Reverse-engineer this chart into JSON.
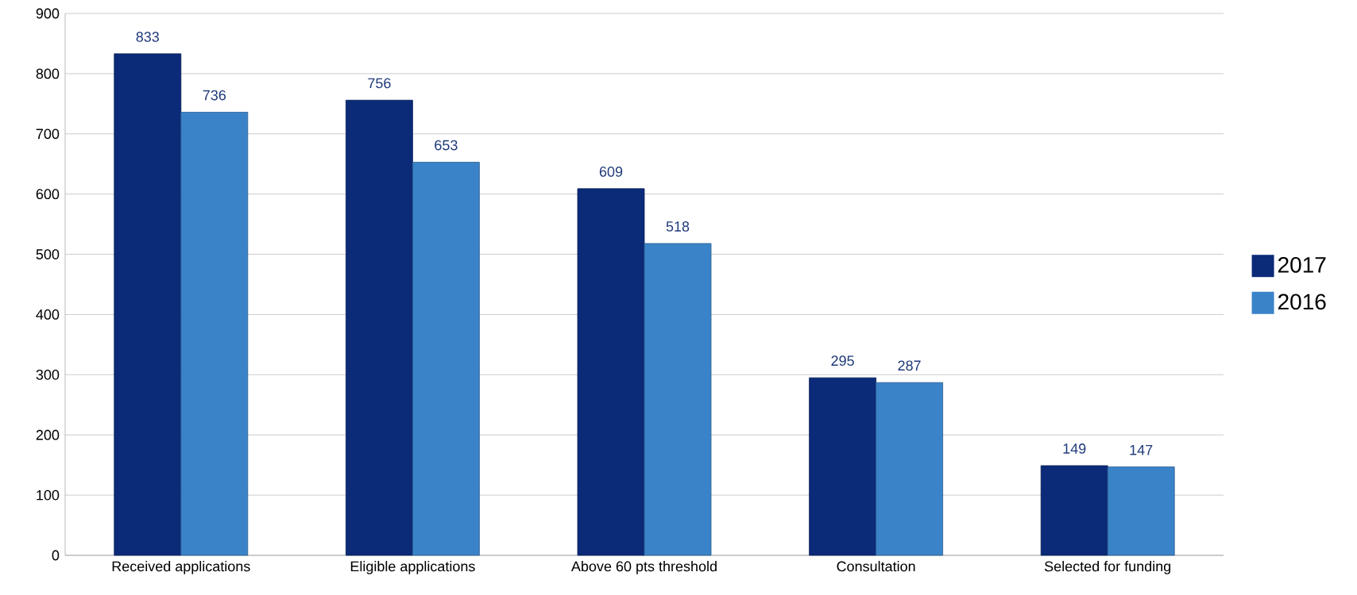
{
  "chart_data": {
    "type": "bar",
    "categories": [
      "Received applications",
      "Eligible applications",
      "Above 60 pts threshold",
      "Consultation",
      "Selected for funding"
    ],
    "series": [
      {
        "name": "2017",
        "color": "#0b2b78",
        "values": [
          833,
          756,
          609,
          295,
          149
        ]
      },
      {
        "name": "2016",
        "color": "#3a83c9",
        "values": [
          736,
          653,
          518,
          287,
          147
        ]
      }
    ],
    "ylim": [
      0,
      900
    ],
    "yticks": [
      0,
      100,
      200,
      300,
      400,
      500,
      600,
      700,
      800,
      900
    ],
    "grid": "y",
    "legend": "right",
    "data_labels": true
  }
}
